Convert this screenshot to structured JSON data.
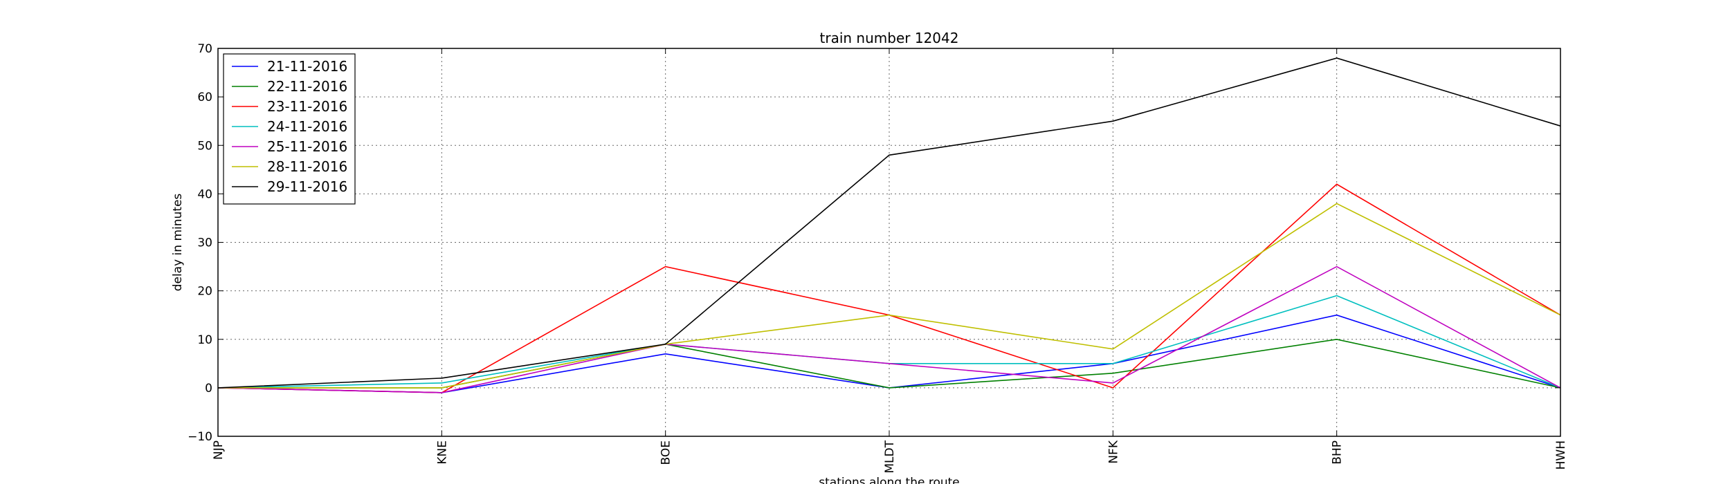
{
  "chart_data": {
    "type": "line",
    "title": "train number 12042",
    "xlabel": "stations along the route",
    "ylabel": "delay in minutes",
    "categories": [
      "NJP",
      "KNE",
      "BOE",
      "MLDT",
      "NFK",
      "BHP",
      "HWH"
    ],
    "ylim": [
      -10,
      70
    ],
    "yticks": [
      -10,
      0,
      10,
      20,
      30,
      40,
      50,
      60,
      70
    ],
    "grid": true,
    "legend_position": "top-left",
    "series": [
      {
        "name": "21-11-2016",
        "color": "#0000ff",
        "values": [
          0,
          -1,
          7,
          0,
          5,
          15,
          0
        ]
      },
      {
        "name": "22-11-2016",
        "color": "#008000",
        "values": [
          0,
          0,
          9,
          0,
          3,
          10,
          0
        ]
      },
      {
        "name": "23-11-2016",
        "color": "#ff0000",
        "values": [
          0,
          -1,
          25,
          15,
          0,
          42,
          15
        ]
      },
      {
        "name": "24-11-2016",
        "color": "#00bfbf",
        "values": [
          0,
          1,
          9,
          5,
          5,
          19,
          0
        ]
      },
      {
        "name": "25-11-2016",
        "color": "#bf00bf",
        "values": [
          0,
          -1,
          9,
          5,
          1,
          25,
          0
        ]
      },
      {
        "name": "28-11-2016",
        "color": "#bfbf00",
        "values": [
          0,
          0,
          9,
          15,
          8,
          38,
          15
        ]
      },
      {
        "name": "29-11-2016",
        "color": "#000000",
        "values": [
          0,
          2,
          9,
          48,
          55,
          68,
          54
        ]
      }
    ]
  }
}
